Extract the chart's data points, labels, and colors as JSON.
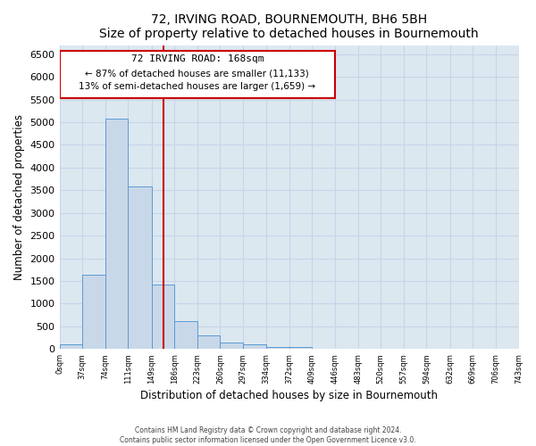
{
  "title": "72, IRVING ROAD, BOURNEMOUTH, BH6 5BH",
  "subtitle": "Size of property relative to detached houses in Bournemouth",
  "xlabel": "Distribution of detached houses by size in Bournemouth",
  "ylabel": "Number of detached properties",
  "footer_line1": "Contains HM Land Registry data © Crown copyright and database right 2024.",
  "footer_line2": "Contains public sector information licensed under the Open Government Licence v3.0.",
  "bin_edges": [
    0,
    37,
    74,
    111,
    149,
    186,
    223,
    260,
    297,
    334,
    372,
    409,
    446,
    483,
    520,
    557,
    594,
    632,
    669,
    706,
    743
  ],
  "bin_counts": [
    100,
    1640,
    5070,
    3580,
    1430,
    620,
    300,
    150,
    110,
    40,
    40,
    0,
    0,
    0,
    0,
    0,
    0,
    0,
    0,
    0
  ],
  "vline_x": 168,
  "bar_color": "#c8d8e8",
  "bar_edge_color": "#5b9bd5",
  "vline_color": "#cc0000",
  "annotation_box_edgecolor": "#cc0000",
  "annotation_text_line1": "72 IRVING ROAD: 168sqm",
  "annotation_text_line2": "← 87% of detached houses are smaller (11,133)",
  "annotation_text_line3": "13% of semi-detached houses are larger (1,659) →",
  "ylim": [
    0,
    6700
  ],
  "yticks": [
    0,
    500,
    1000,
    1500,
    2000,
    2500,
    3000,
    3500,
    4000,
    4500,
    5000,
    5500,
    6000,
    6500
  ],
  "grid_color": "#c8d4e8",
  "background_color": "#dce8f0"
}
